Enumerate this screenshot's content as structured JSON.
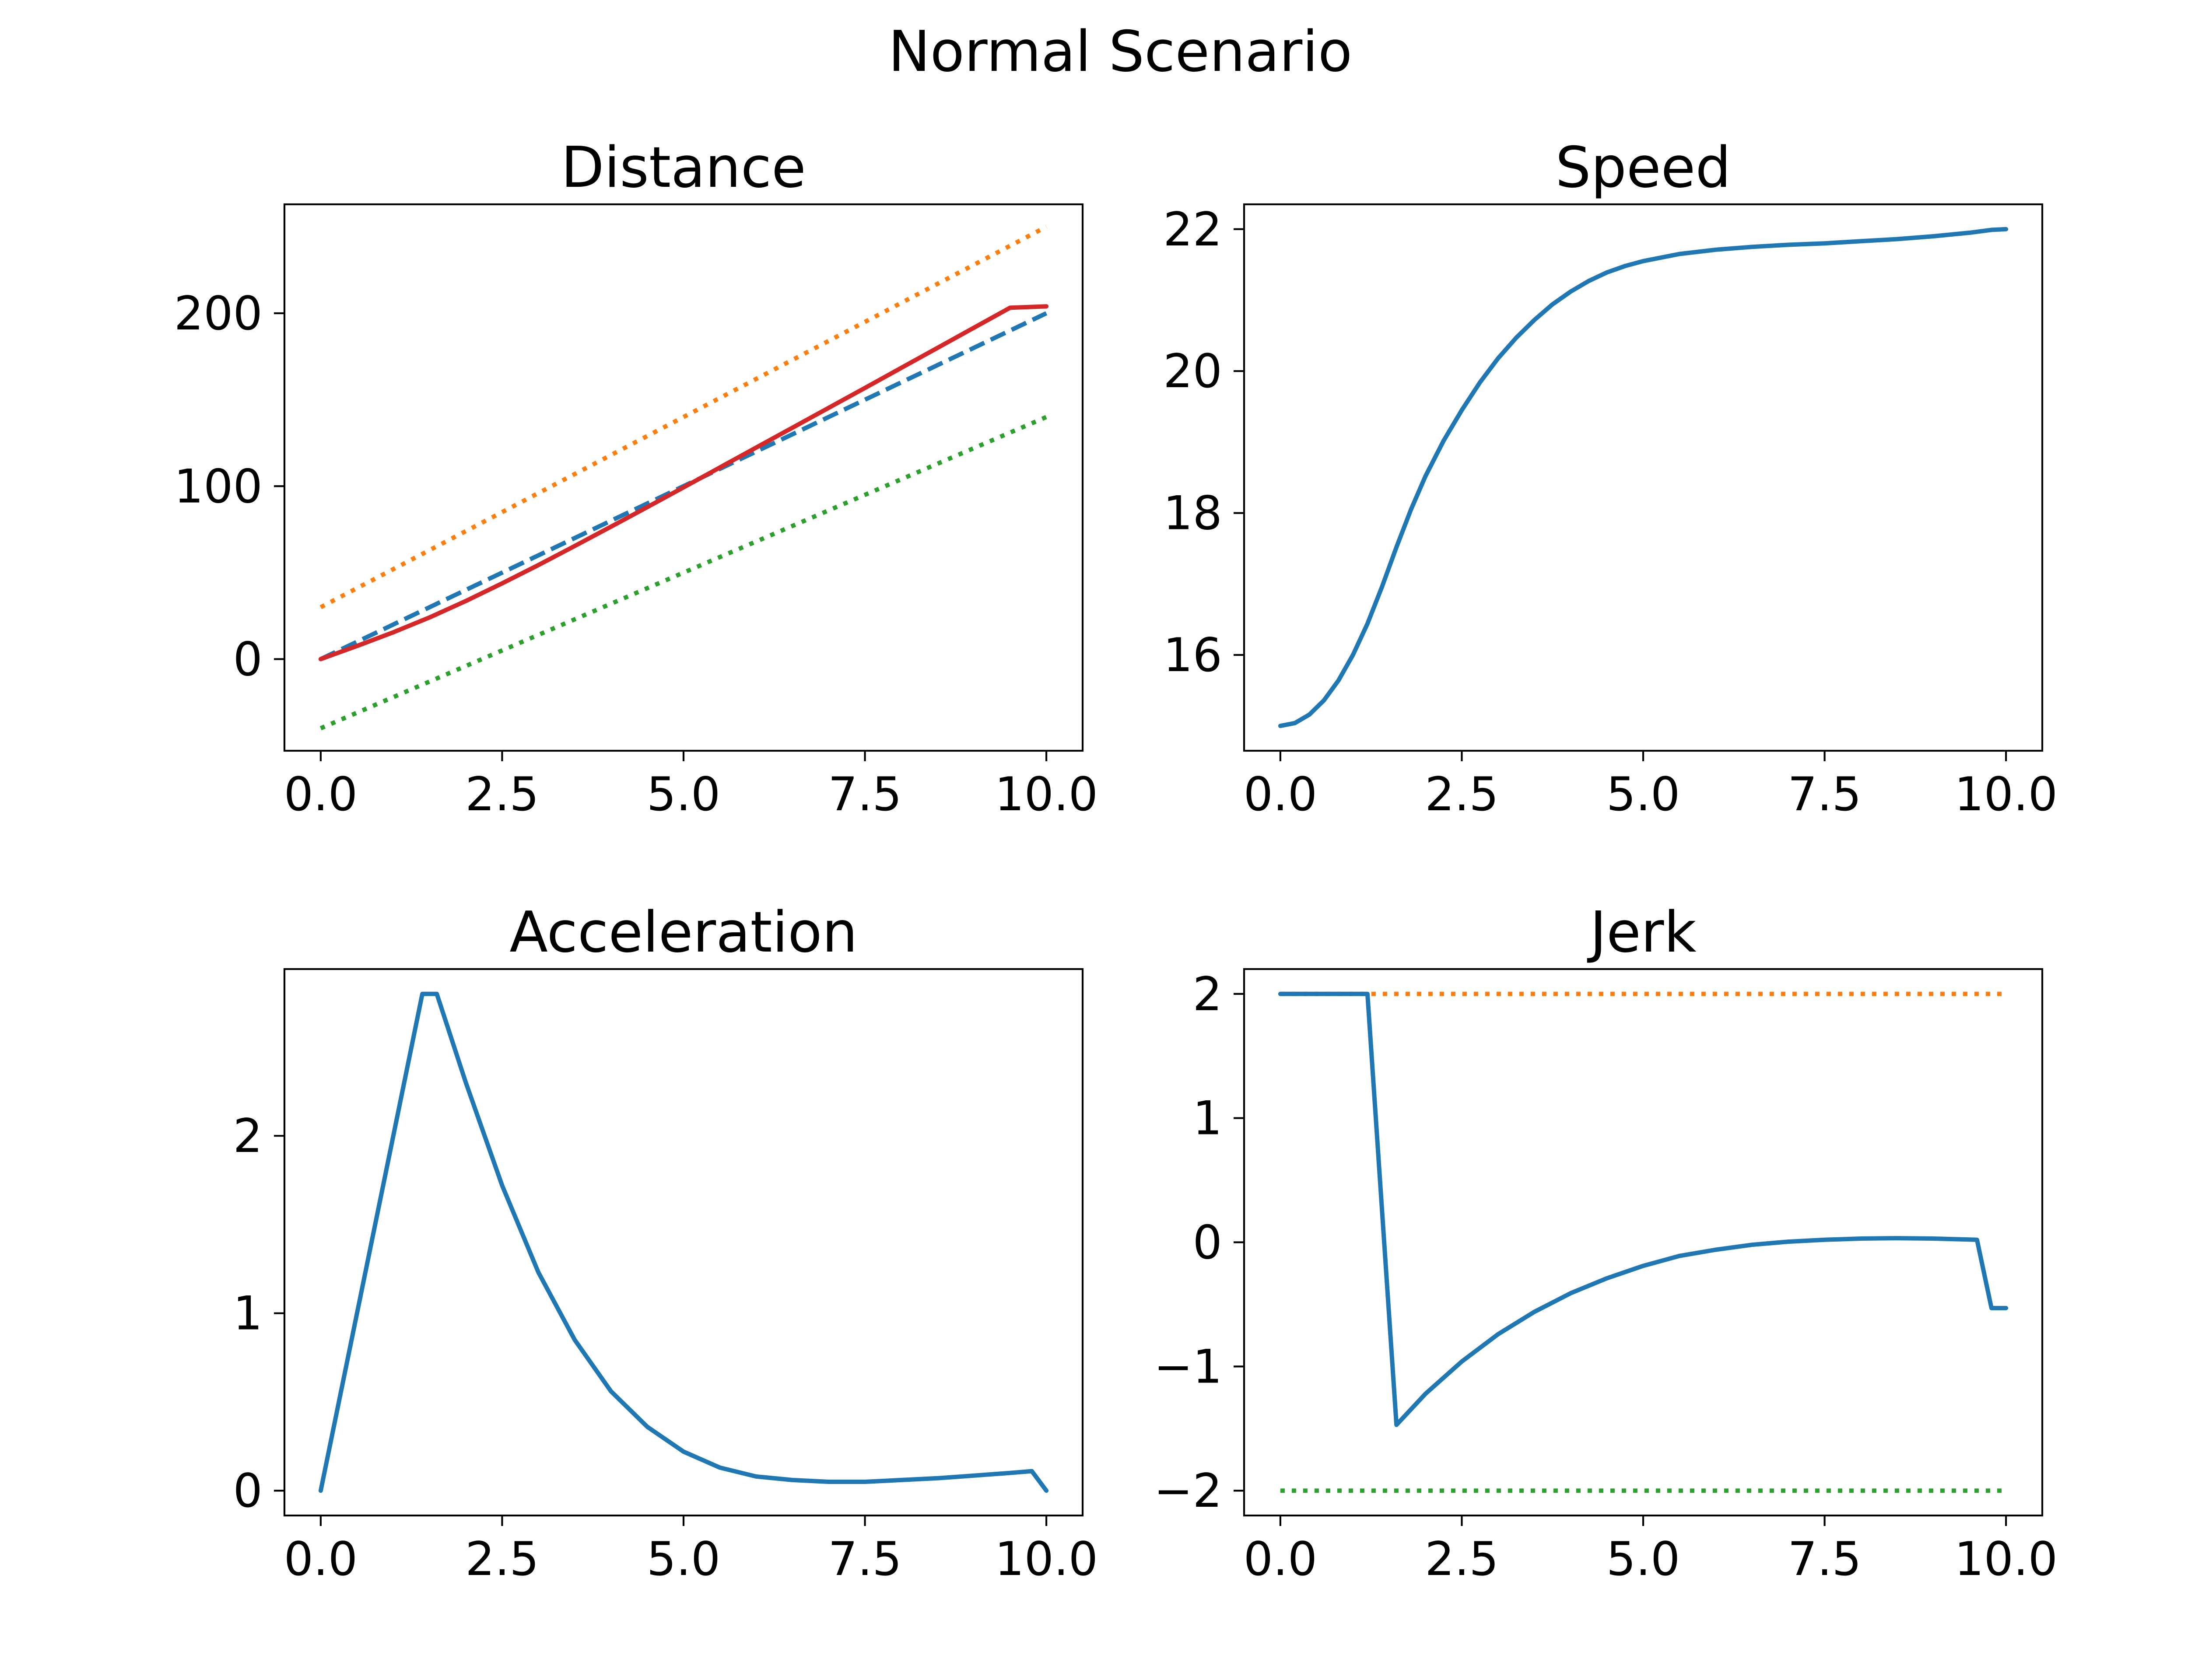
{
  "figure_title": "Normal Scenario",
  "colors": {
    "blue": "#1f77b4",
    "orange": "#ff7f0e",
    "green": "#2ca02c",
    "red": "#d62728",
    "axes": "#000000"
  },
  "chart_data": [
    {
      "id": "distance",
      "type": "line",
      "title": "Distance",
      "xlabel": "",
      "ylabel": "",
      "xlim": [
        -0.5,
        10.5
      ],
      "ylim": [
        -53,
        263
      ],
      "xticks": [
        0,
        2.5,
        5,
        7.5,
        10
      ],
      "xtick_labels": [
        "0.0",
        "2.5",
        "5.0",
        "7.5",
        "10.0"
      ],
      "yticks": [
        0,
        100,
        200
      ],
      "ytick_labels": [
        "0",
        "100",
        "200"
      ],
      "grid": false,
      "legend": "none",
      "series": [
        {
          "color": "#ff7f0e",
          "style": "dotted",
          "x": [
            0,
            10
          ],
          "y": [
            30,
            250
          ]
        },
        {
          "color": "#1f77b4",
          "style": "dashed",
          "x": [
            0,
            10
          ],
          "y": [
            0,
            200
          ]
        },
        {
          "color": "#2ca02c",
          "style": "dotted",
          "x": [
            0,
            10
          ],
          "y": [
            -40,
            140
          ]
        },
        {
          "color": "#d62728",
          "style": "solid",
          "x": [
            0,
            0.5,
            1,
            1.5,
            2,
            2.5,
            3,
            3.5,
            4,
            4.5,
            5,
            5.5,
            6,
            6.5,
            7,
            7.5,
            8,
            8.5,
            9,
            9.5,
            10
          ],
          "y": [
            0,
            7.6,
            15.5,
            24.1,
            33.6,
            43.8,
            54.4,
            65.4,
            76.6,
            87.9,
            99.3,
            110.8,
            122.3,
            133.8,
            145.3,
            156.8,
            168.4,
            180,
            191.6,
            203.2,
            204
          ]
        }
      ]
    },
    {
      "id": "speed",
      "type": "line",
      "title": "Speed",
      "xlabel": "",
      "ylabel": "",
      "xlim": [
        -0.5,
        10.5
      ],
      "ylim": [
        14.65,
        22.35
      ],
      "xticks": [
        0,
        2.5,
        5,
        7.5,
        10
      ],
      "xtick_labels": [
        "0.0",
        "2.5",
        "5.0",
        "7.5",
        "10.0"
      ],
      "yticks": [
        16,
        18,
        20,
        22
      ],
      "ytick_labels": [
        "16",
        "18",
        "20",
        "22"
      ],
      "grid": false,
      "legend": "none",
      "series": [
        {
          "color": "#1f77b4",
          "style": "solid",
          "x": [
            0,
            0.2,
            0.4,
            0.6,
            0.8,
            1.0,
            1.2,
            1.4,
            1.6,
            1.8,
            2.0,
            2.25,
            2.5,
            2.75,
            3.0,
            3.25,
            3.5,
            3.75,
            4.0,
            4.25,
            4.5,
            4.75,
            5.0,
            5.5,
            6.0,
            6.5,
            7.0,
            7.5,
            8.0,
            8.5,
            9.0,
            9.5,
            9.8,
            10
          ],
          "y": [
            15.0,
            15.04,
            15.16,
            15.36,
            15.64,
            16.0,
            16.44,
            16.96,
            17.52,
            18.05,
            18.52,
            19.02,
            19.45,
            19.84,
            20.18,
            20.47,
            20.72,
            20.94,
            21.12,
            21.27,
            21.39,
            21.48,
            21.55,
            21.65,
            21.71,
            21.75,
            21.78,
            21.8,
            21.83,
            21.86,
            21.9,
            21.95,
            21.99,
            22.0
          ]
        }
      ]
    },
    {
      "id": "acceleration",
      "type": "line",
      "title": "Acceleration",
      "xlabel": "",
      "ylabel": "",
      "xlim": [
        -0.5,
        10.5
      ],
      "ylim": [
        -0.14,
        2.94
      ],
      "xticks": [
        0,
        2.5,
        5,
        7.5,
        10
      ],
      "xtick_labels": [
        "0.0",
        "2.5",
        "5.0",
        "7.5",
        "10.0"
      ],
      "yticks": [
        0,
        1,
        2
      ],
      "ytick_labels": [
        "0",
        "1",
        "2"
      ],
      "grid": false,
      "legend": "none",
      "series": [
        {
          "color": "#1f77b4",
          "style": "solid",
          "x": [
            0,
            1.4,
            1.6,
            2.0,
            2.5,
            3.0,
            3.5,
            4.0,
            4.5,
            5.0,
            5.5,
            6.0,
            6.5,
            7.0,
            7.5,
            8.0,
            8.5,
            9.0,
            9.5,
            9.8,
            10
          ],
          "y": [
            0,
            2.8,
            2.8,
            2.3,
            1.72,
            1.23,
            0.85,
            0.56,
            0.36,
            0.22,
            0.13,
            0.08,
            0.06,
            0.05,
            0.05,
            0.06,
            0.07,
            0.085,
            0.1,
            0.11,
            0
          ]
        }
      ]
    },
    {
      "id": "jerk",
      "type": "line",
      "title": "Jerk",
      "xlabel": "",
      "ylabel": "",
      "xlim": [
        -0.5,
        10.5
      ],
      "ylim": [
        -2.2,
        2.2
      ],
      "xticks": [
        0,
        2.5,
        5,
        7.5,
        10
      ],
      "xtick_labels": [
        "0.0",
        "2.5",
        "5.0",
        "7.5",
        "10.0"
      ],
      "yticks": [
        -2,
        -1,
        0,
        1,
        2
      ],
      "ytick_labels": [
        "−2",
        "−1",
        "0",
        "1",
        "2"
      ],
      "grid": false,
      "legend": "none",
      "series": [
        {
          "color": "#ff7f0e",
          "style": "dotted",
          "x": [
            0,
            10
          ],
          "y": [
            2,
            2
          ]
        },
        {
          "color": "#2ca02c",
          "style": "dotted",
          "x": [
            0,
            10
          ],
          "y": [
            -2,
            -2
          ]
        },
        {
          "color": "#1f77b4",
          "style": "solid",
          "x": [
            0,
            1.2,
            1.6,
            2.0,
            2.5,
            3.0,
            3.5,
            4.0,
            4.5,
            5.0,
            5.5,
            6.0,
            6.5,
            7.0,
            7.5,
            8.0,
            8.5,
            9.0,
            9.6,
            9.8,
            10
          ],
          "y": [
            2,
            2,
            -1.47,
            -1.22,
            -0.96,
            -0.74,
            -0.56,
            -0.41,
            -0.29,
            -0.19,
            -0.11,
            -0.06,
            -0.02,
            0.005,
            0.02,
            0.03,
            0.033,
            0.03,
            0.02,
            -0.53,
            -0.53
          ]
        }
      ]
    }
  ]
}
